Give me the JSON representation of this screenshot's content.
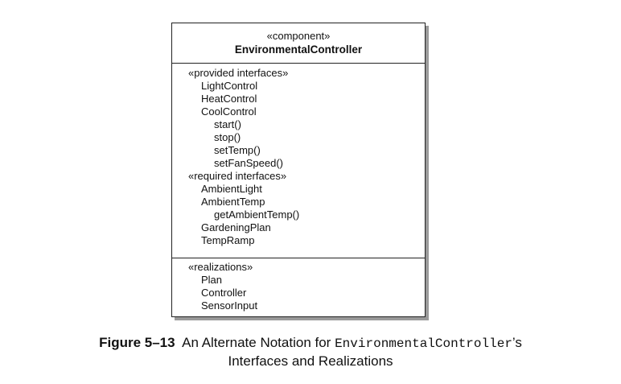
{
  "component": {
    "stereotype": "«component»",
    "name": "EnvironmentalController",
    "provided_header": "«provided interfaces»",
    "provided": {
      "item1": "LightControl",
      "item2": "HeatControl",
      "item3": "CoolControl",
      "cool_ops": [
        "start()",
        "stop()",
        "setTemp()",
        "setFanSpeed()"
      ]
    },
    "required_header": "«required interfaces»",
    "required": {
      "item1": "AmbientLight",
      "item2": "AmbientTemp",
      "ambient_op": "getAmbientTemp()",
      "item3": "GardeningPlan",
      "item4": "TempRamp"
    },
    "realizations_header": "«realizations»",
    "realizations": [
      "Plan",
      "Controller",
      "SensorInput"
    ]
  },
  "caption": {
    "label": "Figure 5–13",
    "text_before": "An Alternate Notation for",
    "code": "EnvironmentalController",
    "text_after": "’s",
    "line2": "Interfaces and Realizations"
  }
}
